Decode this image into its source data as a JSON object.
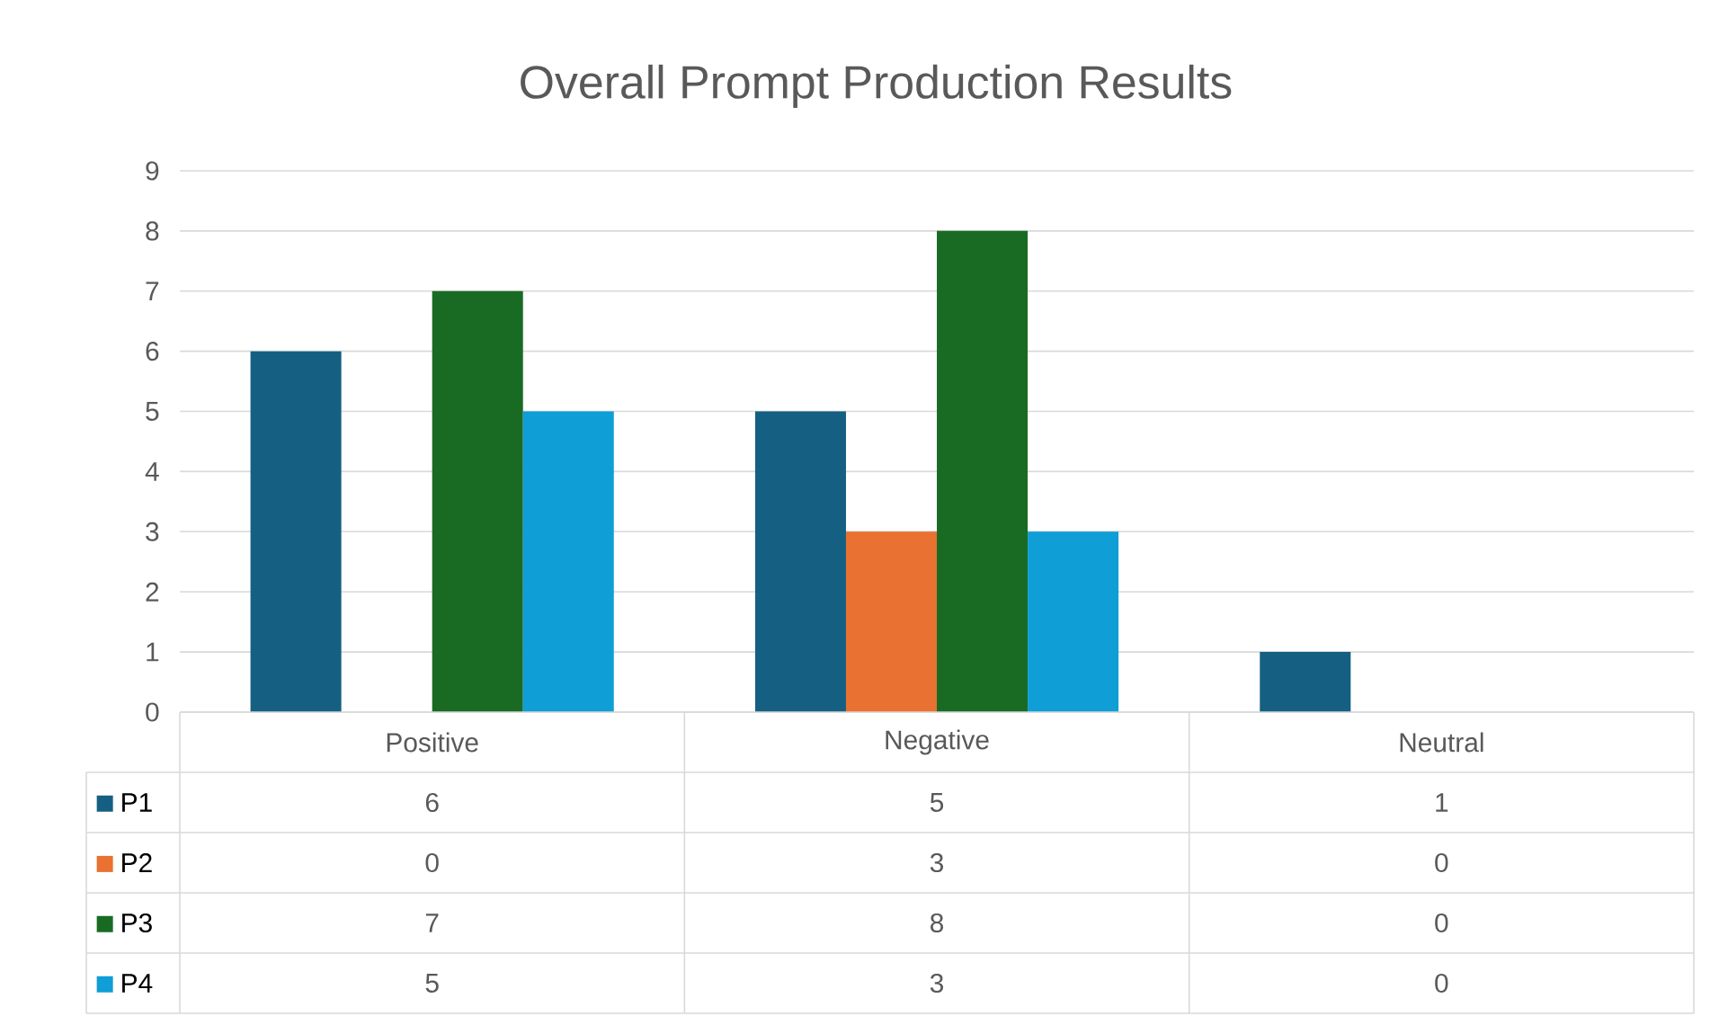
{
  "chart_data": {
    "type": "bar",
    "title": "Overall Prompt Production Results",
    "categories": [
      "Positive",
      "Negative",
      "Neutral"
    ],
    "series": [
      {
        "name": "P1",
        "color": "#156082",
        "values": [
          6,
          5,
          1
        ]
      },
      {
        "name": "P2",
        "color": "#e97132",
        "values": [
          0,
          3,
          0
        ]
      },
      {
        "name": "P3",
        "color": "#196b24",
        "values": [
          7,
          8,
          0
        ]
      },
      {
        "name": "P4",
        "color": "#0f9ed5",
        "values": [
          5,
          3,
          0
        ]
      }
    ],
    "ylim": [
      0,
      9
    ],
    "yticks": [
      0,
      1,
      2,
      3,
      4,
      5,
      6,
      7,
      8,
      9
    ],
    "grid": "y",
    "legend": "bottom",
    "data_labels": true
  }
}
